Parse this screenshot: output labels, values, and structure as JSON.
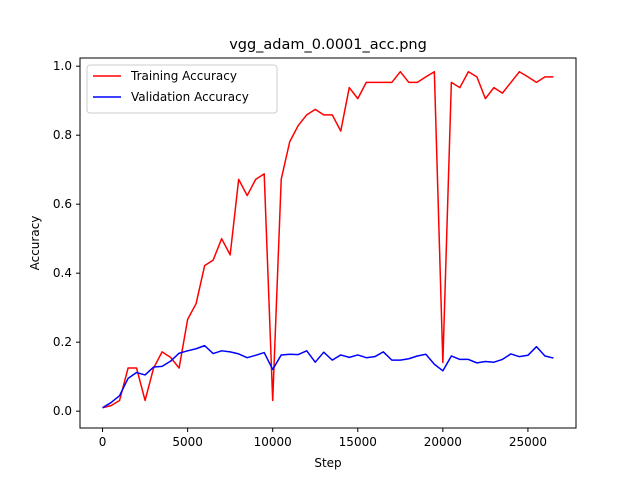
{
  "chart_data": {
    "type": "line",
    "title": "vgg_adam_0.0001_acc.png",
    "xlabel": "Step",
    "ylabel": "Accuracy",
    "xlim": [
      -1325,
      27825
    ],
    "ylim": [
      -0.04875,
      1.02375
    ],
    "xticks": [
      0,
      5000,
      10000,
      15000,
      20000,
      25000
    ],
    "yticks": [
      0.0,
      0.2,
      0.4,
      0.6,
      0.8,
      1.0
    ],
    "ytick_labels": [
      "0.0",
      "0.2",
      "0.4",
      "0.6",
      "0.8",
      "1.0"
    ],
    "xtick_labels": [
      "0",
      "5000",
      "10000",
      "15000",
      "20000",
      "25000"
    ],
    "grid": false,
    "legend_position": "top-left",
    "x": [
      0,
      500,
      1000,
      1500,
      2000,
      2500,
      3000,
      3500,
      4000,
      4500,
      5000,
      5500,
      6000,
      6500,
      7000,
      7500,
      8000,
      8500,
      9000,
      9500,
      10000,
      10500,
      11000,
      11500,
      12000,
      12500,
      13000,
      13500,
      14000,
      14500,
      15000,
      15500,
      16000,
      16500,
      17000,
      17500,
      18000,
      18500,
      19000,
      19500,
      20000,
      20500,
      21000,
      21500,
      22000,
      22500,
      23000,
      23500,
      24000,
      24500,
      25000,
      25500,
      26000,
      26500
    ],
    "series": [
      {
        "name": "Training Accuracy",
        "color": "#ff0000",
        "values": [
          0.01,
          0.016,
          0.031,
          0.125,
          0.125,
          0.031,
          0.125,
          0.172,
          0.156,
          0.125,
          0.266,
          0.312,
          0.422,
          0.438,
          0.5,
          0.453,
          0.672,
          0.625,
          0.672,
          0.688,
          0.031,
          0.672,
          0.781,
          0.828,
          0.859,
          0.875,
          0.859,
          0.859,
          0.812,
          0.938,
          0.906,
          0.953,
          0.953,
          0.953,
          0.953,
          0.984,
          0.953,
          0.953,
          0.969,
          0.984,
          0.141,
          0.953,
          0.938,
          0.984,
          0.969,
          0.906,
          0.938,
          0.922,
          0.953,
          0.984,
          0.969,
          0.953,
          0.969,
          0.969
        ]
      },
      {
        "name": "Validation Accuracy",
        "color": "#0000ff",
        "values": [
          0.01,
          0.025,
          0.045,
          0.095,
          0.112,
          0.105,
          0.128,
          0.13,
          0.145,
          0.168,
          0.175,
          0.181,
          0.19,
          0.167,
          0.175,
          0.172,
          0.166,
          0.155,
          0.162,
          0.17,
          0.121,
          0.163,
          0.165,
          0.164,
          0.175,
          0.142,
          0.171,
          0.148,
          0.163,
          0.156,
          0.163,
          0.155,
          0.158,
          0.172,
          0.148,
          0.148,
          0.152,
          0.16,
          0.165,
          0.136,
          0.117,
          0.16,
          0.15,
          0.15,
          0.14,
          0.144,
          0.142,
          0.15,
          0.166,
          0.158,
          0.162,
          0.187,
          0.16,
          0.154
        ]
      }
    ]
  }
}
